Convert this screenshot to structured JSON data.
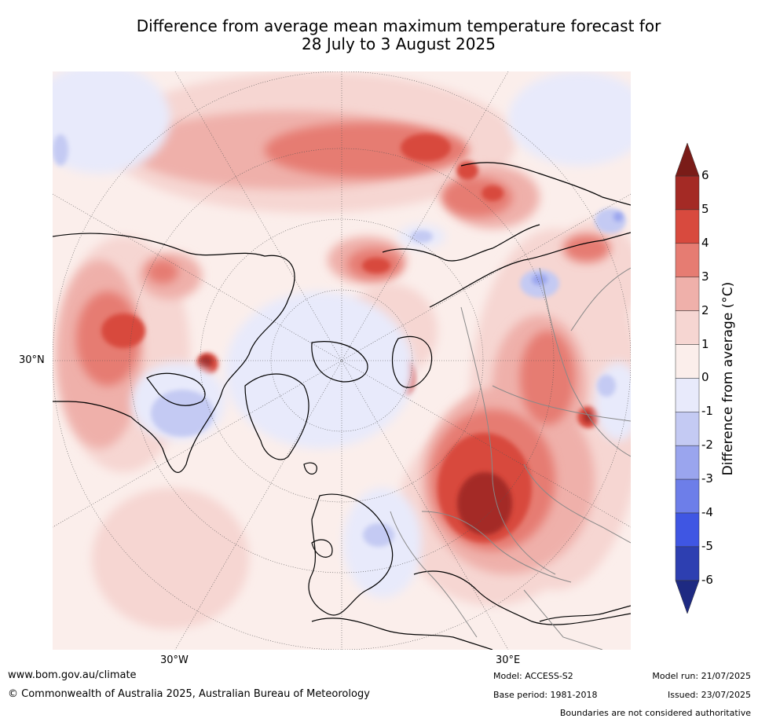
{
  "title_line1": "Difference from average mean maximum temperature forecast for",
  "title_line2": "28 July to 3 August 2025",
  "map": {
    "lat_label": "30°N",
    "lon_labels": [
      "30°W",
      "30°E"
    ]
  },
  "colorbar": {
    "label": "Difference from average (°C)",
    "ticks": [
      "6",
      "5",
      "4",
      "3",
      "2",
      "1",
      "0",
      "-1",
      "-2",
      "-3",
      "-4",
      "-5",
      "-6"
    ],
    "colors_warm": [
      "#a42a25",
      "#d84a3e",
      "#e67c72",
      "#efb0aa",
      "#f6d6d2",
      "#fbeeeb"
    ],
    "colors_cool": [
      "#e8eafb",
      "#c4caf3",
      "#9aa5ee",
      "#6d7ee9",
      "#3f56e3",
      "#2d3fb1"
    ],
    "extend_max": "#7a1c18",
    "extend_min": "#1e2a82"
  },
  "footer": {
    "url": "www.bom.gov.au/climate",
    "copyright": "© Commonwealth of Australia 2025, Australian Bureau of Meteorology",
    "model": "Model: ACCESS-S2",
    "base_period": "Base period: 1981-2018",
    "model_run": "Model run: 21/07/2025",
    "issued": "Issued: 23/07/2025",
    "disclaimer": "Boundaries are not considered authoritative"
  }
}
